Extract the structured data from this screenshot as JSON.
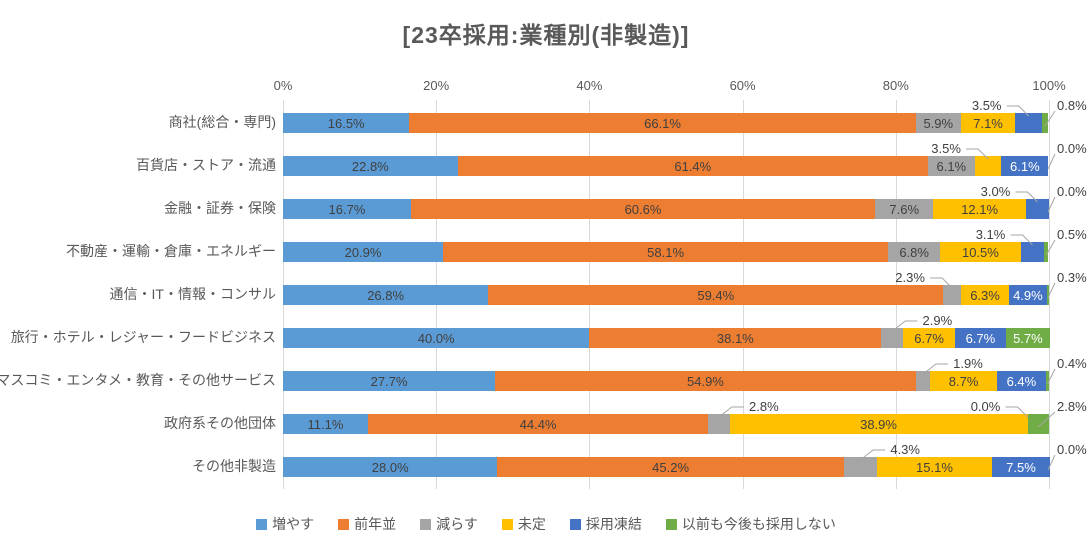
{
  "title": "[23卒採用:業種別(非製造)]",
  "chart_data": {
    "type": "bar",
    "orientation": "horizontal-stacked",
    "title": "[23卒採用:業種別(非製造)]",
    "x_axis": {
      "position": "top",
      "range": [
        0,
        100
      ],
      "ticks": [
        "0%",
        "20%",
        "40%",
        "60%",
        "80%",
        "100%"
      ],
      "grid": true
    },
    "series_names": [
      "増やす",
      "前年並",
      "減らす",
      "未定",
      "採用凍結",
      "以前も今後も採用しない"
    ],
    "series_colors": [
      "#5B9BD5",
      "#ED7D31",
      "#A5A5A5",
      "#FFC000",
      "#4472C4",
      "#70AD47"
    ],
    "unit": "%",
    "rows": [
      {
        "category": "商社(総合・専門)",
        "values": [
          16.5,
          66.1,
          5.9,
          7.1,
          3.5,
          0.8
        ],
        "placements": [
          "inside",
          "inside",
          "inside",
          "inside",
          "above",
          "right"
        ]
      },
      {
        "category": "百貨店・ストア・流通",
        "values": [
          22.8,
          61.4,
          6.1,
          3.5,
          6.1,
          0.0
        ],
        "placements": [
          "inside",
          "inside",
          "inside",
          "above",
          "inside",
          "right"
        ]
      },
      {
        "category": "金融・証券・保険",
        "values": [
          16.7,
          60.6,
          7.6,
          12.1,
          3.0,
          0.0
        ],
        "placements": [
          "inside",
          "inside",
          "inside",
          "inside",
          "above",
          "right"
        ]
      },
      {
        "category": "不動産・運輸・倉庫・エネルギー",
        "values": [
          20.9,
          58.1,
          6.8,
          10.5,
          3.1,
          0.5
        ],
        "placements": [
          "inside",
          "inside",
          "inside",
          "inside",
          "above",
          "right"
        ]
      },
      {
        "category": "通信・IT・情報・コンサル",
        "values": [
          26.8,
          59.4,
          2.3,
          6.3,
          4.9,
          0.3
        ],
        "placements": [
          "inside",
          "inside",
          "above",
          "inside",
          "inside",
          "right"
        ]
      },
      {
        "category": "旅行・ホテル・レジャー・フードビジネス",
        "values": [
          40.0,
          38.1,
          2.9,
          6.7,
          6.7,
          5.7
        ],
        "placements": [
          "inside",
          "inside",
          "above",
          "inside",
          "inside",
          "inside"
        ]
      },
      {
        "category": "マスコミ・エンタメ・教育・その他サービス",
        "values": [
          27.7,
          54.9,
          1.9,
          8.7,
          6.4,
          0.4
        ],
        "placements": [
          "inside",
          "inside",
          "above",
          "inside",
          "inside",
          "right"
        ]
      },
      {
        "category": "政府系その他団体",
        "values": [
          11.1,
          44.4,
          2.8,
          38.9,
          0.0,
          2.8
        ],
        "placements": [
          "inside",
          "inside",
          "above",
          "inside",
          "above",
          "right"
        ]
      },
      {
        "category": "その他非製造",
        "values": [
          28.0,
          45.2,
          4.3,
          15.1,
          7.5,
          0.0
        ],
        "placements": [
          "inside",
          "inside",
          "above",
          "inside",
          "inside",
          "right"
        ]
      }
    ],
    "legend": {
      "position": "bottom",
      "entries": [
        "増やす",
        "前年並",
        "減らす",
        "未定",
        "採用凍結",
        "以前も今後も採用しない"
      ]
    }
  },
  "colors": {
    "title_text": "#595959",
    "axis_text": "#595959",
    "data_label_dark": "#404040",
    "data_label_light": "#FFFFFF",
    "gridline": "#D9D9D9",
    "leader_line": "#A6A6A6"
  }
}
